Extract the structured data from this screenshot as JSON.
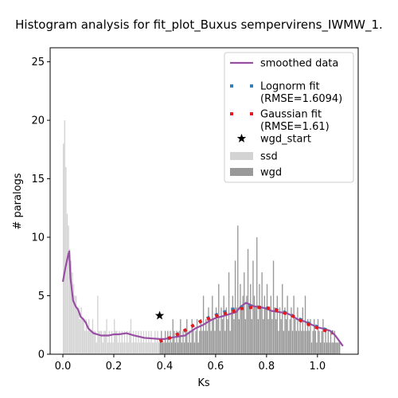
{
  "chart_data": {
    "type": "histogram",
    "title": "Histogram analysis for fit_plot_Buxus sempervirens_IWMW_1.",
    "xlabel": "Ks",
    "ylabel": "# paralogs",
    "xlim": [
      -0.05,
      1.16
    ],
    "ylim": [
      0,
      26.2
    ],
    "xticks": [
      "0.0",
      "0.2",
      "0.4",
      "0.6",
      "0.8",
      "1.0"
    ],
    "yticks": [
      "0",
      "5",
      "10",
      "15",
      "20",
      "25"
    ],
    "grid": false,
    "legend_position": "top-right",
    "legend": [
      {
        "label": "smoothed data",
        "kind": "line",
        "color": "#984ea3"
      },
      {
        "label": "Lognorm fit",
        "label2": "(RMSE=1.6094)",
        "kind": "dotted",
        "color": "#377eb8"
      },
      {
        "label": "Gaussian fit",
        "label2": "(RMSE=1.61)",
        "kind": "dotted",
        "color": "#e41a1c"
      },
      {
        "label": "wgd_start",
        "kind": "star",
        "color": "#000000"
      },
      {
        "label": "ssd",
        "kind": "patch",
        "color": "#d3d3d3"
      },
      {
        "label": "wgd",
        "kind": "patch",
        "color": "#999999"
      }
    ],
    "wgd_start": {
      "x": 0.38,
      "y": 3.3
    },
    "ssd_hist": {
      "color": "#d3d3d3",
      "bin_width": 0.005,
      "bins": [
        [
          0.0,
          18
        ],
        [
          0.005,
          20
        ],
        [
          0.01,
          16
        ],
        [
          0.015,
          12
        ],
        [
          0.02,
          11
        ],
        [
          0.025,
          9
        ],
        [
          0.03,
          8
        ],
        [
          0.035,
          7
        ],
        [
          0.04,
          6
        ],
        [
          0.045,
          5
        ],
        [
          0.05,
          5
        ],
        [
          0.055,
          4
        ],
        [
          0.06,
          4
        ],
        [
          0.065,
          3
        ],
        [
          0.07,
          4
        ],
        [
          0.075,
          3
        ],
        [
          0.08,
          3
        ],
        [
          0.085,
          2
        ],
        [
          0.09,
          3
        ],
        [
          0.095,
          2
        ],
        [
          0.1,
          3
        ],
        [
          0.105,
          2
        ],
        [
          0.11,
          2
        ],
        [
          0.115,
          3
        ],
        [
          0.12,
          2
        ],
        [
          0.125,
          2
        ],
        [
          0.13,
          1
        ],
        [
          0.135,
          5
        ],
        [
          0.14,
          2
        ],
        [
          0.145,
          2
        ],
        [
          0.15,
          2
        ],
        [
          0.155,
          1
        ],
        [
          0.16,
          2
        ],
        [
          0.165,
          2
        ],
        [
          0.17,
          3
        ],
        [
          0.175,
          1
        ],
        [
          0.18,
          2
        ],
        [
          0.185,
          1
        ],
        [
          0.19,
          2
        ],
        [
          0.195,
          1
        ],
        [
          0.2,
          3
        ],
        [
          0.205,
          2
        ],
        [
          0.21,
          2
        ],
        [
          0.215,
          1
        ],
        [
          0.22,
          2
        ],
        [
          0.225,
          1
        ],
        [
          0.23,
          2
        ],
        [
          0.235,
          1
        ],
        [
          0.24,
          2
        ],
        [
          0.245,
          1
        ],
        [
          0.25,
          2
        ],
        [
          0.255,
          1
        ],
        [
          0.26,
          2
        ],
        [
          0.265,
          3
        ],
        [
          0.27,
          1
        ],
        [
          0.275,
          2
        ],
        [
          0.28,
          1
        ],
        [
          0.285,
          2
        ],
        [
          0.29,
          1
        ],
        [
          0.295,
          2
        ],
        [
          0.3,
          1
        ],
        [
          0.305,
          2
        ],
        [
          0.31,
          1
        ],
        [
          0.315,
          2
        ],
        [
          0.32,
          1
        ],
        [
          0.325,
          2
        ],
        [
          0.33,
          1
        ],
        [
          0.335,
          2
        ],
        [
          0.34,
          1
        ],
        [
          0.345,
          2
        ],
        [
          0.35,
          1
        ],
        [
          0.355,
          1
        ],
        [
          0.36,
          2
        ],
        [
          0.365,
          1
        ],
        [
          0.37,
          2
        ],
        [
          0.375,
          1
        ]
      ]
    },
    "wgd_hist": {
      "color": "#999999",
      "bin_width": 0.005,
      "bins": [
        [
          0.38,
          1
        ],
        [
          0.385,
          2
        ],
        [
          0.39,
          1
        ],
        [
          0.395,
          1
        ],
        [
          0.4,
          2
        ],
        [
          0.405,
          1
        ],
        [
          0.41,
          2
        ],
        [
          0.415,
          1
        ],
        [
          0.42,
          2
        ],
        [
          0.425,
          1
        ],
        [
          0.43,
          3
        ],
        [
          0.435,
          2
        ],
        [
          0.44,
          1
        ],
        [
          0.445,
          2
        ],
        [
          0.45,
          1
        ],
        [
          0.455,
          2
        ],
        [
          0.46,
          3
        ],
        [
          0.465,
          1
        ],
        [
          0.47,
          2
        ],
        [
          0.475,
          1
        ],
        [
          0.48,
          2
        ],
        [
          0.485,
          3
        ],
        [
          0.49,
          1
        ],
        [
          0.495,
          2
        ],
        [
          0.5,
          1
        ],
        [
          0.505,
          3
        ],
        [
          0.51,
          2
        ],
        [
          0.515,
          1
        ],
        [
          0.52,
          2
        ],
        [
          0.525,
          3
        ],
        [
          0.53,
          1
        ],
        [
          0.535,
          2
        ],
        [
          0.54,
          3
        ],
        [
          0.545,
          2
        ],
        [
          0.55,
          5
        ],
        [
          0.555,
          2
        ],
        [
          0.56,
          3
        ],
        [
          0.565,
          2
        ],
        [
          0.57,
          4
        ],
        [
          0.575,
          3
        ],
        [
          0.58,
          2
        ],
        [
          0.585,
          5
        ],
        [
          0.59,
          3
        ],
        [
          0.595,
          2
        ],
        [
          0.6,
          4
        ],
        [
          0.605,
          3
        ],
        [
          0.61,
          6
        ],
        [
          0.615,
          2
        ],
        [
          0.62,
          4
        ],
        [
          0.625,
          3
        ],
        [
          0.63,
          5
        ],
        [
          0.635,
          2
        ],
        [
          0.64,
          4
        ],
        [
          0.645,
          3
        ],
        [
          0.65,
          7
        ],
        [
          0.655,
          2
        ],
        [
          0.66,
          4
        ],
        [
          0.665,
          5
        ],
        [
          0.67,
          3
        ],
        [
          0.675,
          8
        ],
        [
          0.68,
          4
        ],
        [
          0.685,
          11
        ],
        [
          0.69,
          3
        ],
        [
          0.695,
          6
        ],
        [
          0.7,
          4
        ],
        [
          0.705,
          5
        ],
        [
          0.71,
          7
        ],
        [
          0.715,
          3
        ],
        [
          0.72,
          5
        ],
        [
          0.725,
          9
        ],
        [
          0.73,
          4
        ],
        [
          0.735,
          6
        ],
        [
          0.74,
          3
        ],
        [
          0.745,
          8
        ],
        [
          0.75,
          5
        ],
        [
          0.755,
          4
        ],
        [
          0.76,
          10
        ],
        [
          0.765,
          3
        ],
        [
          0.77,
          6
        ],
        [
          0.775,
          4
        ],
        [
          0.78,
          7
        ],
        [
          0.785,
          3
        ],
        [
          0.79,
          5
        ],
        [
          0.795,
          4
        ],
        [
          0.8,
          6
        ],
        [
          0.805,
          3
        ],
        [
          0.81,
          4
        ],
        [
          0.815,
          5
        ],
        [
          0.82,
          3
        ],
        [
          0.825,
          8
        ],
        [
          0.83,
          4
        ],
        [
          0.835,
          3
        ],
        [
          0.84,
          5
        ],
        [
          0.845,
          2
        ],
        [
          0.85,
          4
        ],
        [
          0.855,
          3
        ],
        [
          0.86,
          6
        ],
        [
          0.865,
          2
        ],
        [
          0.87,
          4
        ],
        [
          0.875,
          3
        ],
        [
          0.88,
          5
        ],
        [
          0.885,
          2
        ],
        [
          0.89,
          3
        ],
        [
          0.895,
          4
        ],
        [
          0.9,
          2
        ],
        [
          0.905,
          5
        ],
        [
          0.91,
          3
        ],
        [
          0.915,
          2
        ],
        [
          0.92,
          4
        ],
        [
          0.925,
          2
        ],
        [
          0.93,
          3
        ],
        [
          0.935,
          2
        ],
        [
          0.94,
          4
        ],
        [
          0.945,
          2
        ],
        [
          0.95,
          5
        ],
        [
          0.955,
          2
        ],
        [
          0.96,
          3
        ],
        [
          0.965,
          2
        ],
        [
          0.97,
          3
        ],
        [
          0.975,
          1
        ],
        [
          0.98,
          2
        ],
        [
          0.985,
          3
        ],
        [
          0.99,
          2
        ],
        [
          0.995,
          1
        ],
        [
          1.0,
          3
        ],
        [
          1.005,
          2
        ],
        [
          1.01,
          1
        ],
        [
          1.015,
          2
        ],
        [
          1.02,
          3
        ],
        [
          1.025,
          1
        ],
        [
          1.03,
          2
        ],
        [
          1.035,
          1
        ],
        [
          1.04,
          2
        ],
        [
          1.045,
          1
        ],
        [
          1.05,
          2
        ],
        [
          1.055,
          1
        ],
        [
          1.06,
          1
        ],
        [
          1.065,
          2
        ],
        [
          1.07,
          1
        ],
        [
          1.075,
          1
        ],
        [
          1.08,
          1
        ],
        [
          1.085,
          1
        ]
      ]
    },
    "smoothed_data": {
      "color": "#984ea3",
      "x": [
        0.0,
        0.01,
        0.02,
        0.025,
        0.03,
        0.04,
        0.05,
        0.06,
        0.07,
        0.08,
        0.09,
        0.1,
        0.12,
        0.15,
        0.18,
        0.2,
        0.22,
        0.25,
        0.28,
        0.3,
        0.32,
        0.35,
        0.38,
        0.4,
        0.42,
        0.45,
        0.48,
        0.5,
        0.52,
        0.55,
        0.58,
        0.6,
        0.62,
        0.65,
        0.68,
        0.7,
        0.72,
        0.75,
        0.78,
        0.8,
        0.82,
        0.85,
        0.88,
        0.9,
        0.92,
        0.95,
        0.98,
        1.0,
        1.02,
        1.05,
        1.07,
        1.08,
        1.09,
        1.1
      ],
      "y": [
        6.2,
        7.4,
        8.4,
        8.8,
        6.5,
        4.6,
        4.1,
        3.8,
        3.2,
        3.0,
        2.7,
        2.2,
        1.8,
        1.6,
        1.6,
        1.7,
        1.7,
        1.8,
        1.6,
        1.5,
        1.4,
        1.35,
        1.3,
        1.3,
        1.4,
        1.5,
        1.6,
        1.9,
        2.2,
        2.5,
        2.9,
        3.1,
        3.2,
        3.4,
        3.6,
        4.1,
        4.4,
        4.1,
        4.0,
        3.9,
        3.7,
        3.6,
        3.5,
        3.3,
        3.0,
        2.8,
        2.5,
        2.3,
        2.2,
        2.0,
        1.6,
        1.3,
        1.0,
        0.7
      ]
    },
    "lognorm_fit": {
      "color": "#377eb8",
      "x": [
        0.38,
        0.42,
        0.46,
        0.5,
        0.54,
        0.58,
        0.62,
        0.66,
        0.7,
        0.74,
        0.78,
        0.82,
        0.86,
        0.9,
        0.94,
        0.98,
        1.02,
        1.06
      ],
      "y": [
        1.1,
        1.4,
        1.8,
        2.3,
        2.8,
        3.2,
        3.5,
        3.8,
        4.0,
        4.1,
        4.0,
        3.9,
        3.7,
        3.3,
        2.9,
        2.5,
        2.2,
        1.9
      ]
    },
    "gaussian_fit": {
      "color": "#e41a1c",
      "x": [
        0.38,
        0.42,
        0.46,
        0.5,
        0.54,
        0.58,
        0.62,
        0.66,
        0.7,
        0.74,
        0.78,
        0.82,
        0.86,
        0.9,
        0.94,
        0.98,
        1.02,
        1.06
      ],
      "y": [
        1.1,
        1.4,
        1.8,
        2.3,
        2.8,
        3.1,
        3.4,
        3.6,
        3.9,
        4.0,
        4.0,
        3.9,
        3.6,
        3.3,
        2.8,
        2.4,
        2.1,
        1.8
      ]
    }
  }
}
